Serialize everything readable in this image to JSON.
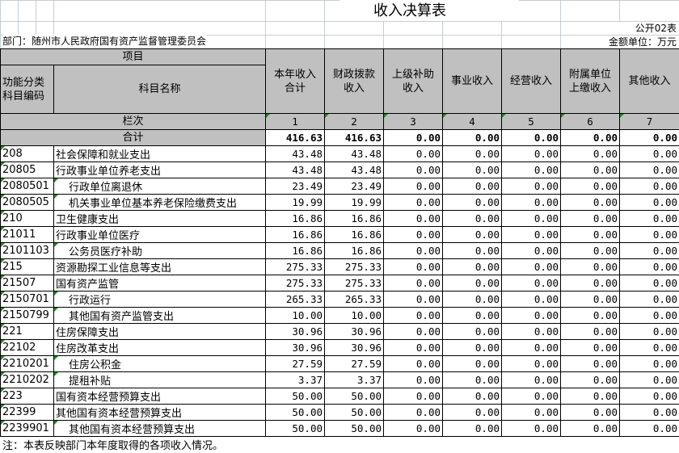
{
  "title": "收入决算表",
  "form_no": "公开02表",
  "department": "部门：随州市人民政府国有资产监督管理委员会",
  "unit": "金额单位：万元",
  "header": {
    "item": "项目",
    "code": "功能分类科目编码",
    "name": "科目名称",
    "columns": [
      "本年收入合计",
      "财政拨款收入",
      "上级补助收入",
      "事业收入",
      "经营收入",
      "附属单位上缴收入",
      "其他收入"
    ],
    "seq_label": "栏次",
    "seq": [
      "1",
      "2",
      "3",
      "4",
      "5",
      "6",
      "7"
    ]
  },
  "total": {
    "label": "合计",
    "values": [
      "416.63",
      "416.63",
      "0.00",
      "0.00",
      "0.00",
      "0.00",
      "0.00"
    ]
  },
  "rows": [
    {
      "code": "208",
      "name": "社会保障和就业支出",
      "level": 1,
      "values": [
        "43.48",
        "43.48",
        "0.00",
        "0.00",
        "0.00",
        "0.00",
        "0.00"
      ]
    },
    {
      "code": "20805",
      "name": "行政事业单位养老支出",
      "level": 2,
      "values": [
        "43.48",
        "43.48",
        "0.00",
        "0.00",
        "0.00",
        "0.00",
        "0.00"
      ]
    },
    {
      "code": "2080501",
      "name": "行政单位离退休",
      "level": 3,
      "values": [
        "23.49",
        "23.49",
        "0.00",
        "0.00",
        "0.00",
        "0.00",
        "0.00"
      ]
    },
    {
      "code": "2080505",
      "name": "机关事业单位基本养老保险缴费支出",
      "level": 3,
      "values": [
        "19.99",
        "19.99",
        "0.00",
        "0.00",
        "0.00",
        "0.00",
        "0.00"
      ]
    },
    {
      "code": "210",
      "name": "卫生健康支出",
      "level": 1,
      "values": [
        "16.86",
        "16.86",
        "0.00",
        "0.00",
        "0.00",
        "0.00",
        "0.00"
      ]
    },
    {
      "code": "21011",
      "name": "行政事业单位医疗",
      "level": 2,
      "values": [
        "16.86",
        "16.86",
        "0.00",
        "0.00",
        "0.00",
        "0.00",
        "0.00"
      ]
    },
    {
      "code": "2101103",
      "name": "公务员医疗补助",
      "level": 3,
      "values": [
        "16.86",
        "16.86",
        "0.00",
        "0.00",
        "0.00",
        "0.00",
        "0.00"
      ]
    },
    {
      "code": "215",
      "name": "资源勘探工业信息等支出",
      "level": 1,
      "values": [
        "275.33",
        "275.33",
        "0.00",
        "0.00",
        "0.00",
        "0.00",
        "0.00"
      ]
    },
    {
      "code": "21507",
      "name": "国有资产监管",
      "level": 2,
      "values": [
        "275.33",
        "275.33",
        "0.00",
        "0.00",
        "0.00",
        "0.00",
        "0.00"
      ]
    },
    {
      "code": "2150701",
      "name": "行政运行",
      "level": 3,
      "values": [
        "265.33",
        "265.33",
        "0.00",
        "0.00",
        "0.00",
        "0.00",
        "0.00"
      ]
    },
    {
      "code": "2150799",
      "name": "其他国有资产监管支出",
      "level": 3,
      "values": [
        "10.00",
        "10.00",
        "0.00",
        "0.00",
        "0.00",
        "0.00",
        "0.00"
      ]
    },
    {
      "code": "221",
      "name": "住房保障支出",
      "level": 1,
      "values": [
        "30.96",
        "30.96",
        "0.00",
        "0.00",
        "0.00",
        "0.00",
        "0.00"
      ]
    },
    {
      "code": "22102",
      "name": "住房改革支出",
      "level": 2,
      "values": [
        "30.96",
        "30.96",
        "0.00",
        "0.00",
        "0.00",
        "0.00",
        "0.00"
      ]
    },
    {
      "code": "2210201",
      "name": "住房公积金",
      "level": 3,
      "values": [
        "27.59",
        "27.59",
        "0.00",
        "0.00",
        "0.00",
        "0.00",
        "0.00"
      ]
    },
    {
      "code": "2210202",
      "name": "提租补贴",
      "level": 3,
      "values": [
        "3.37",
        "3.37",
        "0.00",
        "0.00",
        "0.00",
        "0.00",
        "0.00"
      ]
    },
    {
      "code": "223",
      "name": "国有资本经营预算支出",
      "level": 1,
      "values": [
        "50.00",
        "50.00",
        "0.00",
        "0.00",
        "0.00",
        "0.00",
        "0.00"
      ]
    },
    {
      "code": "22399",
      "name": "其他国有资本经营预算支出",
      "level": 2,
      "values": [
        "50.00",
        "50.00",
        "0.00",
        "0.00",
        "0.00",
        "0.00",
        "0.00"
      ]
    },
    {
      "code": "2239901",
      "name": "其他国有资本经营预算支出",
      "level": 3,
      "values": [
        "50.00",
        "50.00",
        "0.00",
        "0.00",
        "0.00",
        "0.00",
        "0.00"
      ]
    }
  ],
  "note": "注：本表反映部门本年度取得的各项收入情况。"
}
